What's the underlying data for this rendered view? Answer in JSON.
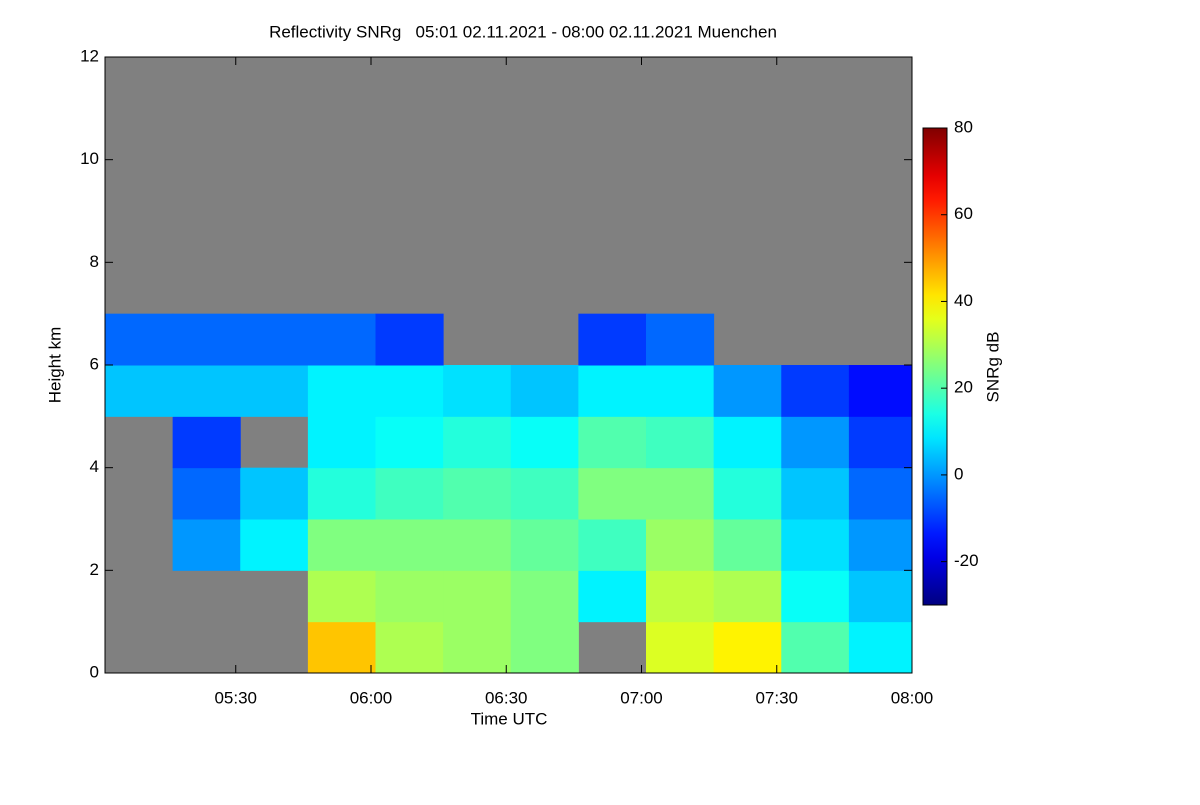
{
  "chart_data": {
    "type": "heatmap",
    "title": "Reflectivity SNRg   05:01 02.11.2021 - 08:00 02.11.2021 Muenchen",
    "xlabel": "Time UTC",
    "ylabel": "Height km",
    "colorbar_label": "SNRg dB",
    "colormap": "jet",
    "background": "#808080",
    "xlim": [
      "05:01",
      "08:00"
    ],
    "xticks": [
      "05:30",
      "06:00",
      "06:30",
      "07:00",
      "07:30",
      "08:00"
    ],
    "ylim": [
      0,
      12
    ],
    "yticks": [
      0,
      2,
      4,
      6,
      8,
      10,
      12
    ],
    "clim": [
      -30,
      80
    ],
    "cticks": [
      -20,
      0,
      20,
      40,
      60,
      80
    ],
    "x": [
      "05:01",
      "05:16",
      "05:31",
      "05:46",
      "06:01",
      "06:16",
      "06:31",
      "06:46",
      "07:01",
      "07:16",
      "07:31",
      "07:46",
      "08:00"
    ],
    "y": [
      0,
      1,
      2,
      3,
      4,
      5,
      6,
      7
    ],
    "values": [
      [
        null,
        null,
        null,
        45,
        30,
        28,
        25,
        null,
        35,
        40,
        20,
        10
      ],
      [
        null,
        null,
        null,
        30,
        28,
        28,
        25,
        10,
        32,
        30,
        12,
        5
      ],
      [
        null,
        0,
        10,
        25,
        25,
        25,
        22,
        18,
        28,
        22,
        8,
        0
      ],
      [
        null,
        -5,
        5,
        15,
        18,
        20,
        18,
        25,
        25,
        15,
        5,
        -5
      ],
      [
        null,
        -10,
        null,
        10,
        12,
        15,
        12,
        20,
        18,
        10,
        0,
        -10
      ],
      [
        5,
        5,
        5,
        10,
        10,
        8,
        5,
        10,
        10,
        0,
        -10,
        -15
      ],
      [
        -5,
        -5,
        -5,
        -5,
        -10,
        null,
        null,
        -10,
        -5,
        null,
        null,
        null
      ]
    ]
  }
}
